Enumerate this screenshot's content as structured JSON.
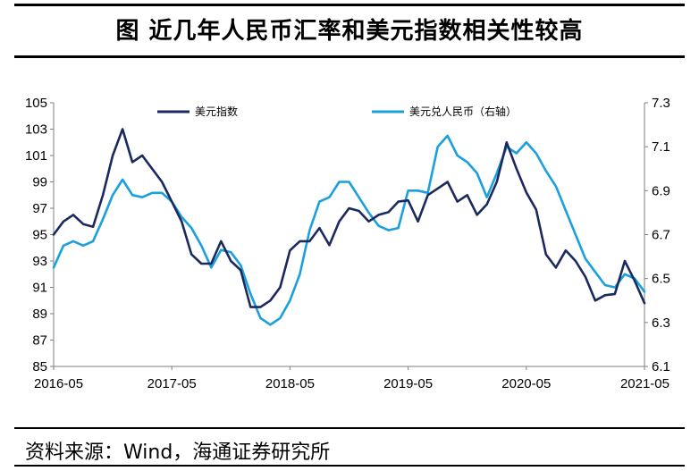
{
  "page": {
    "title": "图  近几年人民币汇率和美元指数相关性较高",
    "source": "资料来源：Wind，海通证券研究所"
  },
  "chart_data": {
    "type": "line",
    "title": "图  近几年人民币汇率和美元指数相关性较高",
    "xlabel": "",
    "ylabel": "",
    "x_ticks": [
      "2016-05",
      "2017-05",
      "2018-05",
      "2019-05",
      "2020-05",
      "2021-05"
    ],
    "xlim": [
      "2016-05",
      "2021-05"
    ],
    "ylim_left": [
      85,
      105
    ],
    "ylim_right": [
      6.1,
      7.3
    ],
    "y_ticks_left": [
      "105",
      "103",
      "101",
      "99",
      "97",
      "95",
      "93",
      "91",
      "89",
      "87",
      "85"
    ],
    "y_ticks_right": [
      "7.3",
      "7.1",
      "6.9",
      "6.7",
      "6.5",
      "6.3",
      "6.1"
    ],
    "grid": false,
    "legend_position": "top",
    "series": [
      {
        "name": "美元指数",
        "axis": "left",
        "color": "#1b2a5e",
        "x": [
          "2016-05",
          "2016-06",
          "2016-07",
          "2016-08",
          "2016-09",
          "2016-10",
          "2016-11",
          "2016-12",
          "2017-01",
          "2017-02",
          "2017-03",
          "2017-04",
          "2017-05",
          "2017-06",
          "2017-07",
          "2017-08",
          "2017-09",
          "2017-10",
          "2017-11",
          "2017-12",
          "2018-01",
          "2018-02",
          "2018-03",
          "2018-04",
          "2018-05",
          "2018-06",
          "2018-07",
          "2018-08",
          "2018-09",
          "2018-10",
          "2018-11",
          "2018-12",
          "2019-01",
          "2019-02",
          "2019-03",
          "2019-04",
          "2019-05",
          "2019-06",
          "2019-07",
          "2019-08",
          "2019-09",
          "2019-10",
          "2019-11",
          "2019-12",
          "2020-01",
          "2020-02",
          "2020-03",
          "2020-04",
          "2020-05",
          "2020-06",
          "2020-07",
          "2020-08",
          "2020-09",
          "2020-10",
          "2020-11",
          "2020-12",
          "2021-01",
          "2021-02",
          "2021-03",
          "2021-04",
          "2021-05"
        ],
        "values": [
          95.0,
          96.0,
          96.5,
          95.8,
          95.6,
          98.0,
          101.0,
          103.0,
          100.5,
          101.0,
          100.0,
          99.0,
          97.5,
          96.0,
          93.5,
          92.8,
          92.8,
          94.5,
          93.0,
          92.3,
          89.5,
          89.5,
          90.0,
          91.0,
          93.8,
          94.5,
          94.5,
          95.5,
          94.2,
          96.0,
          97.0,
          96.8,
          96.0,
          96.5,
          96.7,
          97.5,
          97.6,
          96.0,
          98.0,
          98.5,
          99.0,
          97.5,
          98.0,
          96.5,
          97.3,
          99.0,
          102.0,
          100.0,
          98.2,
          96.9,
          93.5,
          92.5,
          93.8,
          93.0,
          91.8,
          90.0,
          90.4,
          90.5,
          93.0,
          91.5,
          89.8
        ]
      },
      {
        "name": "美元兑人民币（右轴）",
        "axis": "right",
        "color": "#1aa0dc",
        "x": [
          "2016-05",
          "2016-06",
          "2016-07",
          "2016-08",
          "2016-09",
          "2016-10",
          "2016-11",
          "2016-12",
          "2017-01",
          "2017-02",
          "2017-03",
          "2017-04",
          "2017-05",
          "2017-06",
          "2017-07",
          "2017-08",
          "2017-09",
          "2017-10",
          "2017-11",
          "2017-12",
          "2018-01",
          "2018-02",
          "2018-03",
          "2018-04",
          "2018-05",
          "2018-06",
          "2018-07",
          "2018-08",
          "2018-09",
          "2018-10",
          "2018-11",
          "2018-12",
          "2019-01",
          "2019-02",
          "2019-03",
          "2019-04",
          "2019-05",
          "2019-06",
          "2019-07",
          "2019-08",
          "2019-09",
          "2019-10",
          "2019-11",
          "2019-12",
          "2020-01",
          "2020-02",
          "2020-03",
          "2020-04",
          "2020-05",
          "2020-06",
          "2020-07",
          "2020-08",
          "2020-09",
          "2020-10",
          "2020-11",
          "2020-12",
          "2021-01",
          "2021-02",
          "2021-03",
          "2021-04",
          "2021-05"
        ],
        "values": [
          6.55,
          6.65,
          6.67,
          6.65,
          6.67,
          6.77,
          6.88,
          6.95,
          6.88,
          6.87,
          6.89,
          6.89,
          6.85,
          6.78,
          6.73,
          6.65,
          6.55,
          6.63,
          6.62,
          6.56,
          6.43,
          6.32,
          6.29,
          6.32,
          6.4,
          6.52,
          6.72,
          6.85,
          6.87,
          6.94,
          6.94,
          6.87,
          6.8,
          6.74,
          6.72,
          6.73,
          6.9,
          6.9,
          6.89,
          7.1,
          7.15,
          7.06,
          7.03,
          6.98,
          6.87,
          6.98,
          7.1,
          7.07,
          7.12,
          7.07,
          6.99,
          6.92,
          6.81,
          6.7,
          6.59,
          6.53,
          6.47,
          6.46,
          6.52,
          6.5,
          6.44
        ]
      }
    ]
  }
}
